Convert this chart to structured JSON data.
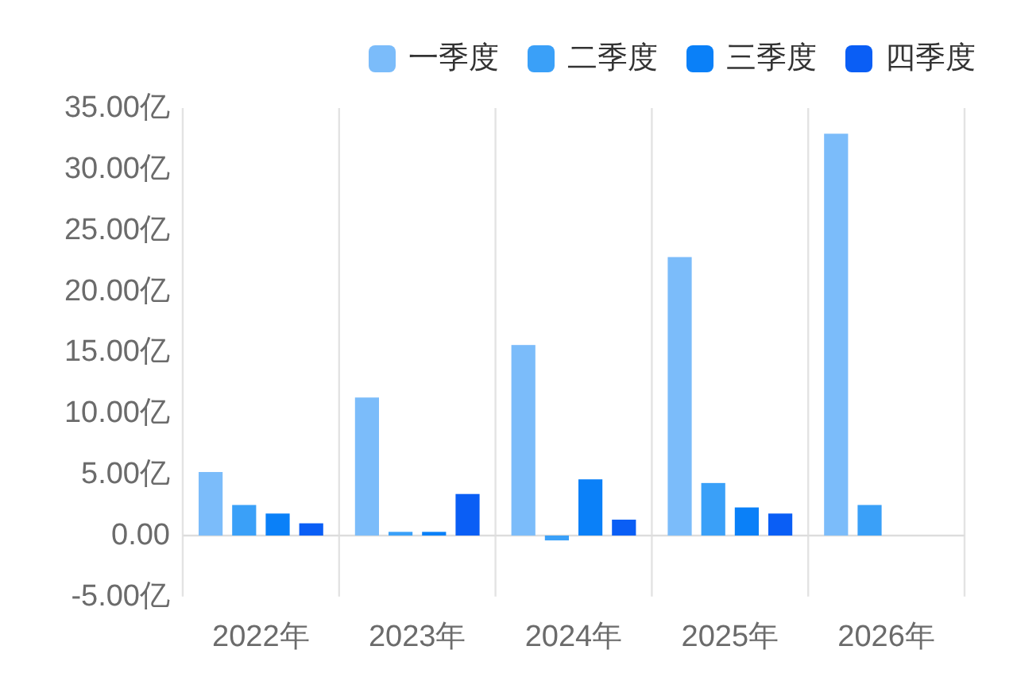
{
  "chart_data": {
    "type": "bar",
    "categories": [
      "2022年",
      "2023年",
      "2024年",
      "2025年",
      "2026年"
    ],
    "series": [
      {
        "name": "一季度",
        "color": "#7bbcfa",
        "values": [
          5.2,
          11.3,
          15.6,
          22.8,
          32.9
        ]
      },
      {
        "name": "二季度",
        "color": "#3aa0f8",
        "values": [
          2.5,
          0.3,
          -0.4,
          4.3,
          2.5
        ]
      },
      {
        "name": "三季度",
        "color": "#0a80f8",
        "values": [
          1.8,
          0.3,
          4.6,
          2.3,
          null
        ]
      },
      {
        "name": "四季度",
        "color": "#0a5ef5",
        "values": [
          1.0,
          3.4,
          1.3,
          1.8,
          null
        ]
      }
    ],
    "ylim": [
      -5,
      35
    ],
    "yticks": [
      {
        "value": -5,
        "label": "-5.00亿"
      },
      {
        "value": 0,
        "label": "0.00"
      },
      {
        "value": 5,
        "label": "5.00亿"
      },
      {
        "value": 10,
        "label": "10.00亿"
      },
      {
        "value": 15,
        "label": "15.00亿"
      },
      {
        "value": 20,
        "label": "20.00亿"
      },
      {
        "value": 25,
        "label": "25.00亿"
      },
      {
        "value": 30,
        "label": "30.00亿"
      },
      {
        "value": 35,
        "label": "35.00亿"
      }
    ],
    "grid": "x",
    "legend": "top right"
  }
}
